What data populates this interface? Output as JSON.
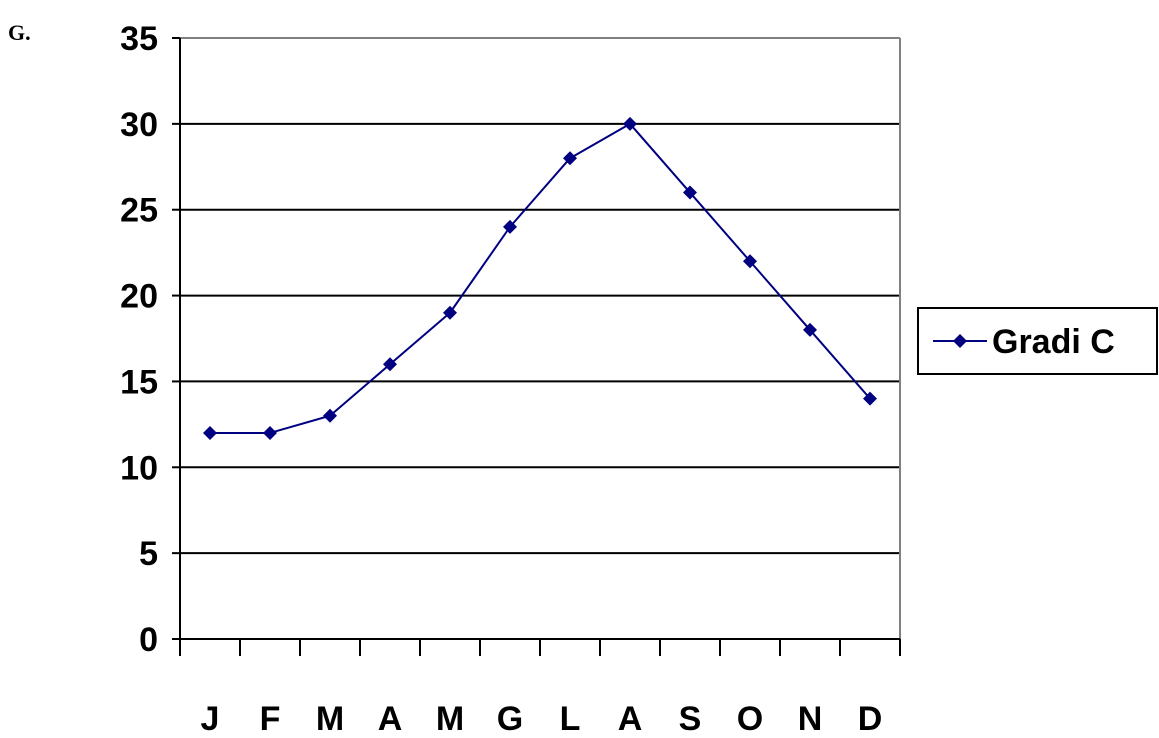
{
  "panel_label": "G.",
  "chart_data": {
    "type": "line",
    "categories": [
      "J",
      "F",
      "M",
      "A",
      "M",
      "G",
      "L",
      "A",
      "S",
      "O",
      "N",
      "D"
    ],
    "series": [
      {
        "name": "Gradi C",
        "values": [
          12,
          12,
          13,
          16,
          19,
          24,
          28,
          30,
          26,
          22,
          18,
          14
        ]
      }
    ],
    "ylim": [
      0,
      35
    ],
    "yticks": [
      0,
      5,
      10,
      15,
      20,
      25,
      30,
      35
    ],
    "grid": true,
    "legend": "right",
    "line_color": "#000080",
    "marker": "diamond"
  }
}
